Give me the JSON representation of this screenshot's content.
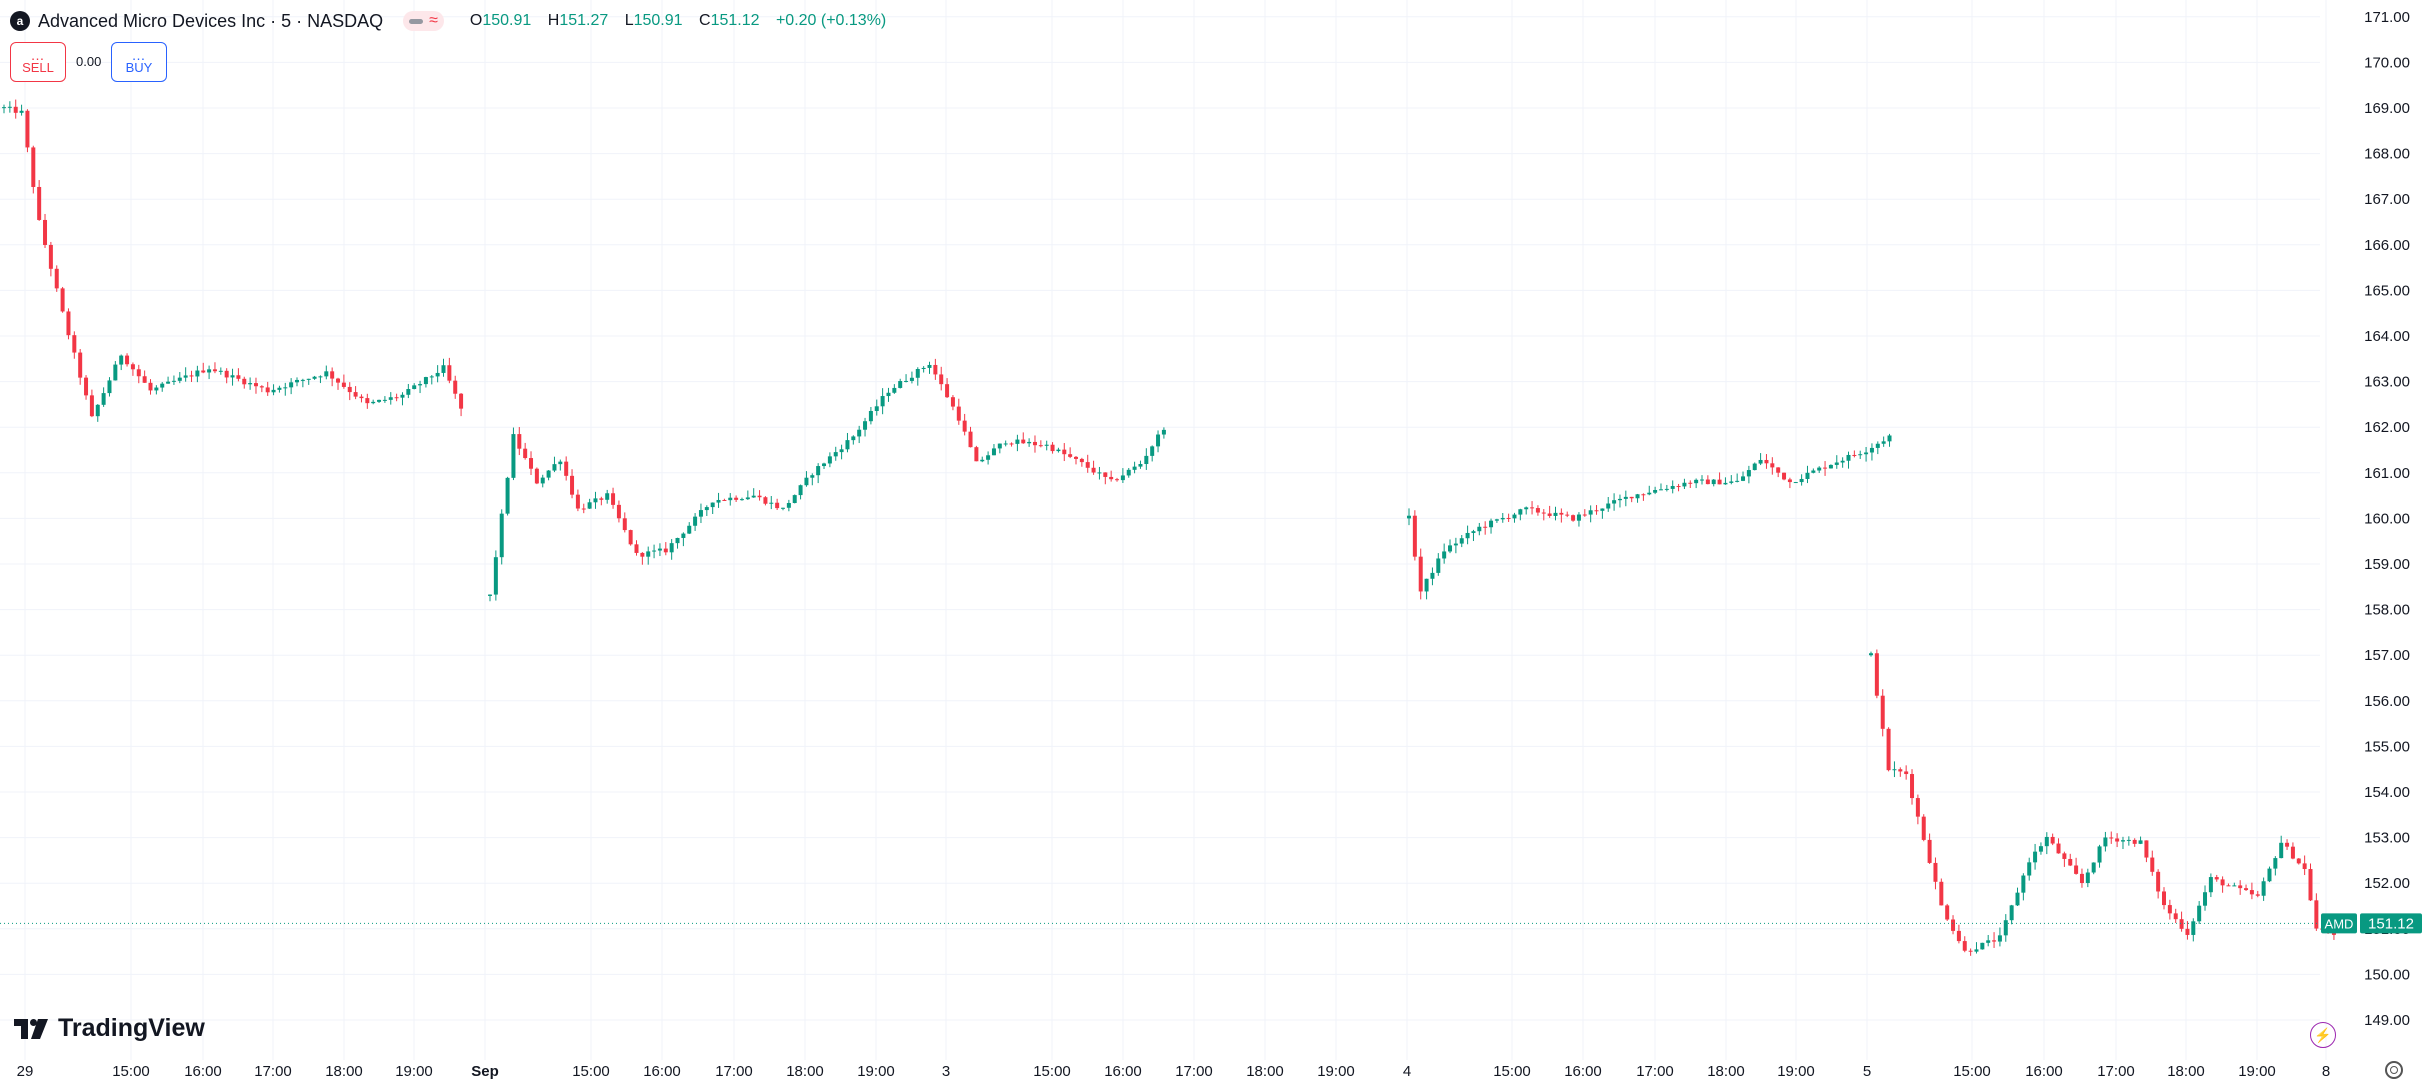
{
  "header": {
    "logo_letter": "a",
    "title": "Advanced Micro Devices Inc · 5 · NASDAQ",
    "pill_wave": "≈",
    "open_label": "O",
    "open": "150.91",
    "high_label": "H",
    "high": "151.27",
    "low_label": "L",
    "low": "150.91",
    "close_label": "C",
    "close": "151.12",
    "change": "+0.20 (+0.13%)"
  },
  "trade": {
    "sell_price": "…",
    "sell_label": "SELL",
    "spread": "0.00",
    "buy_price": "…",
    "buy_label": "BUY"
  },
  "brand": {
    "name": "TradingView"
  },
  "last_price": {
    "symbol": "AMD",
    "value": "151.12"
  },
  "colors": {
    "up": "#089981",
    "down": "#f23645",
    "grid": "#f0f3fa",
    "axis_text": "#131722"
  },
  "icons": {
    "logo": "amd-logo-icon",
    "bolt": "lightning-icon",
    "gear": "settings-gear-icon"
  },
  "chart_data": {
    "type": "candlestick",
    "interval": "5",
    "y_ticks": [
      149,
      150,
      151,
      152,
      153,
      154,
      155,
      156,
      157,
      158,
      159,
      160,
      161,
      162,
      163,
      164,
      165,
      166,
      167,
      168,
      169,
      170,
      171
    ],
    "ylim": [
      148.0,
      171.3
    ],
    "x_ticks": [
      "29",
      "15:00",
      "16:00",
      "17:00",
      "18:00",
      "19:00",
      "Sep",
      "15:00",
      "16:00",
      "17:00",
      "18:00",
      "19:00",
      "3",
      "15:00",
      "16:00",
      "17:00",
      "18:00",
      "19:00",
      "4",
      "15:00",
      "16:00",
      "17:00",
      "18:00",
      "19:00",
      "5",
      "15:00",
      "16:00",
      "17:00",
      "18:00",
      "19:00",
      "8"
    ],
    "x_bold": [
      6
    ],
    "grid": true,
    "last_price": 151.12,
    "sessions": [
      {
        "name": "Aug 29",
        "start": 169.0,
        "path": [
          [
            0,
            169.0
          ],
          [
            3,
            168.9
          ],
          [
            6,
            166.5
          ],
          [
            10,
            164.5
          ],
          [
            15,
            162.2
          ],
          [
            20,
            163.6
          ],
          [
            25,
            162.8
          ],
          [
            35,
            163.3
          ],
          [
            45,
            162.8
          ],
          [
            55,
            163.2
          ],
          [
            62,
            162.5
          ],
          [
            68,
            162.7
          ],
          [
            75,
            163.3
          ],
          [
            78,
            162.4
          ]
        ]
      },
      {
        "name": "Sep 3",
        "start": 158.3,
        "path": [
          [
            0,
            158.3
          ],
          [
            4,
            161.8
          ],
          [
            8,
            160.8
          ],
          [
            12,
            161.3
          ],
          [
            15,
            160.2
          ],
          [
            20,
            160.5
          ],
          [
            25,
            159.2
          ],
          [
            30,
            159.3
          ],
          [
            38,
            160.4
          ],
          [
            45,
            160.5
          ],
          [
            50,
            160.2
          ],
          [
            55,
            161.0
          ],
          [
            62,
            161.8
          ],
          [
            68,
            162.8
          ],
          [
            75,
            163.4
          ],
          [
            80,
            162.2
          ],
          [
            83,
            161.2
          ],
          [
            88,
            161.7
          ],
          [
            95,
            161.6
          ],
          [
            101,
            161.2
          ],
          [
            106,
            160.8
          ],
          [
            111,
            161.2
          ],
          [
            115,
            162.0
          ]
        ]
      },
      {
        "name": "Sep 4",
        "start": 160.0,
        "path": [
          [
            0,
            160.0
          ],
          [
            2,
            158.4
          ],
          [
            6,
            159.3
          ],
          [
            12,
            159.8
          ],
          [
            20,
            160.2
          ],
          [
            28,
            160.0
          ],
          [
            38,
            160.5
          ],
          [
            48,
            160.8
          ],
          [
            56,
            160.8
          ],
          [
            60,
            161.3
          ],
          [
            65,
            160.8
          ],
          [
            72,
            161.2
          ],
          [
            78,
            161.5
          ],
          [
            82,
            161.8
          ]
        ]
      },
      {
        "name": "Sep 5",
        "start": 157.0,
        "path": [
          [
            0,
            157.0
          ],
          [
            3,
            154.5
          ],
          [
            6,
            154.4
          ],
          [
            10,
            152.5
          ],
          [
            12,
            151.5
          ],
          [
            16,
            150.5
          ],
          [
            22,
            150.8
          ],
          [
            27,
            152.5
          ],
          [
            30,
            153.0
          ],
          [
            36,
            152.0
          ],
          [
            40,
            153.0
          ],
          [
            46,
            152.9
          ],
          [
            50,
            151.5
          ],
          [
            54,
            150.9
          ],
          [
            58,
            152.1
          ],
          [
            62,
            151.9
          ],
          [
            66,
            151.7
          ],
          [
            70,
            152.9
          ],
          [
            74,
            152.3
          ],
          [
            76,
            151.0
          ],
          [
            79,
            150.9
          ]
        ]
      }
    ]
  }
}
